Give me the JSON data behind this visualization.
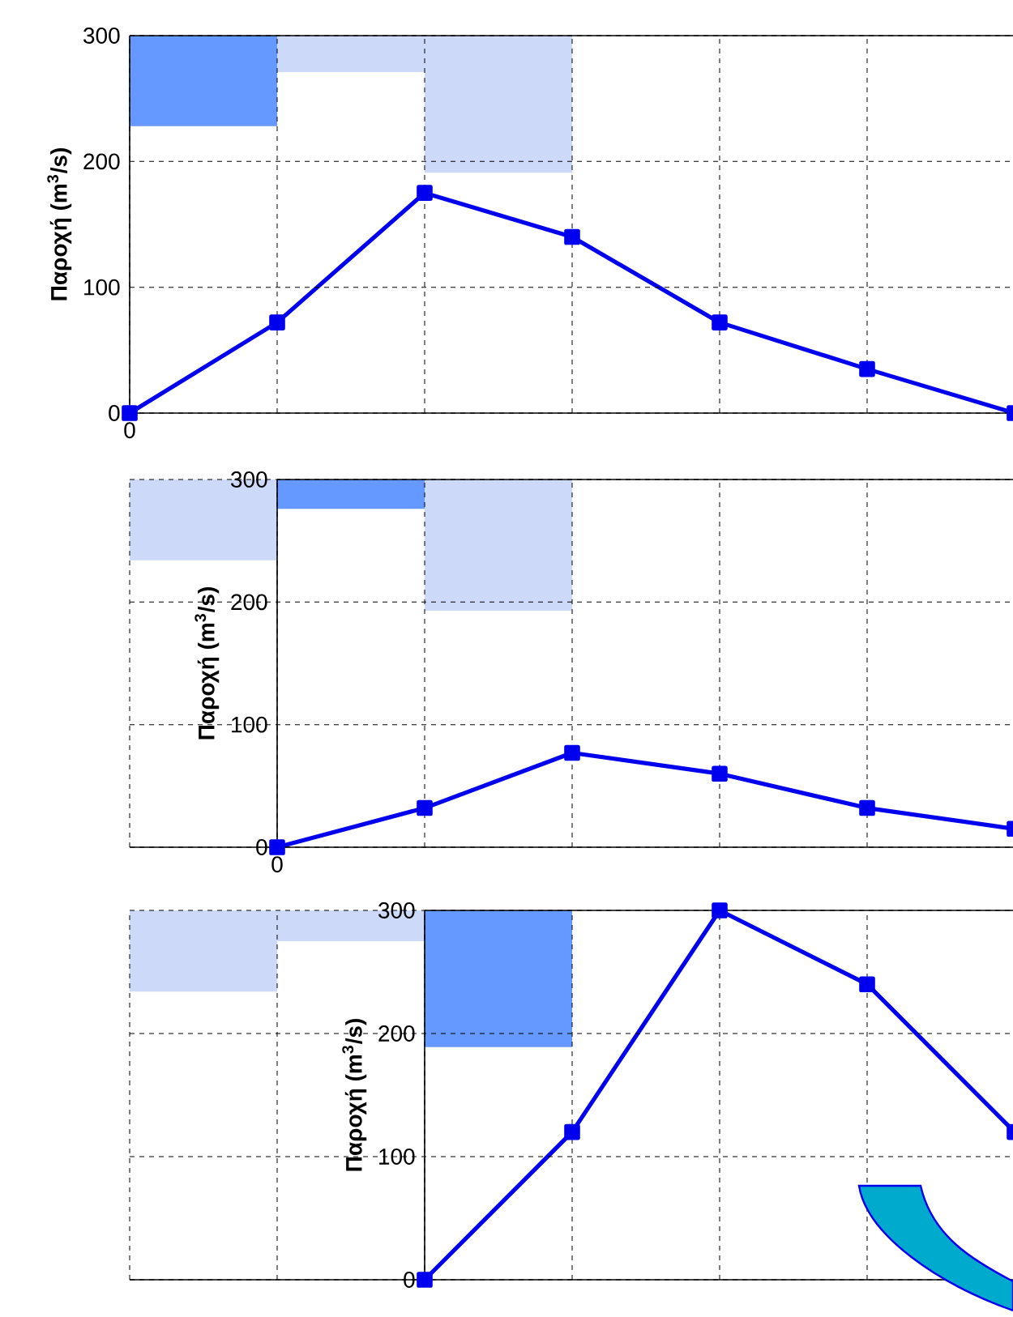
{
  "chart_data": [
    {
      "type": "line",
      "ylabel": "Παροχή (m$^{3}$/s)",
      "categories": [
        "0",
        null,
        null,
        null,
        null,
        null,
        null
      ],
      "ylim": [
        0,
        300
      ],
      "yticks": [
        0,
        100,
        200,
        300
      ],
      "grid": true,
      "marker": "square",
      "color": "#0000ee",
      "values": [
        0,
        72,
        175,
        140,
        72,
        35,
        0
      ]
    },
    {
      "type": "line",
      "ylabel": "Παροχή (m$^{3}$/s)",
      "categories": [
        "0",
        null,
        null,
        null,
        null,
        null
      ],
      "ylim": [
        0,
        300
      ],
      "yticks": [
        0,
        100,
        200,
        300
      ],
      "grid": true,
      "marker": "square",
      "color": "#0000ee",
      "values": [
        0,
        32,
        77,
        60,
        32,
        15
      ]
    },
    {
      "type": "line",
      "ylabel": "Παροχή (m$^{3}$/s)",
      "categories": [
        null,
        null,
        null,
        null,
        null
      ],
      "ylim": [
        0,
        300
      ],
      "yticks": [
        0,
        100,
        200,
        300
      ],
      "grid": true,
      "marker": "square",
      "color": "#0000ee",
      "values": [
        0,
        120,
        300,
        240,
        120
      ]
    }
  ]
}
